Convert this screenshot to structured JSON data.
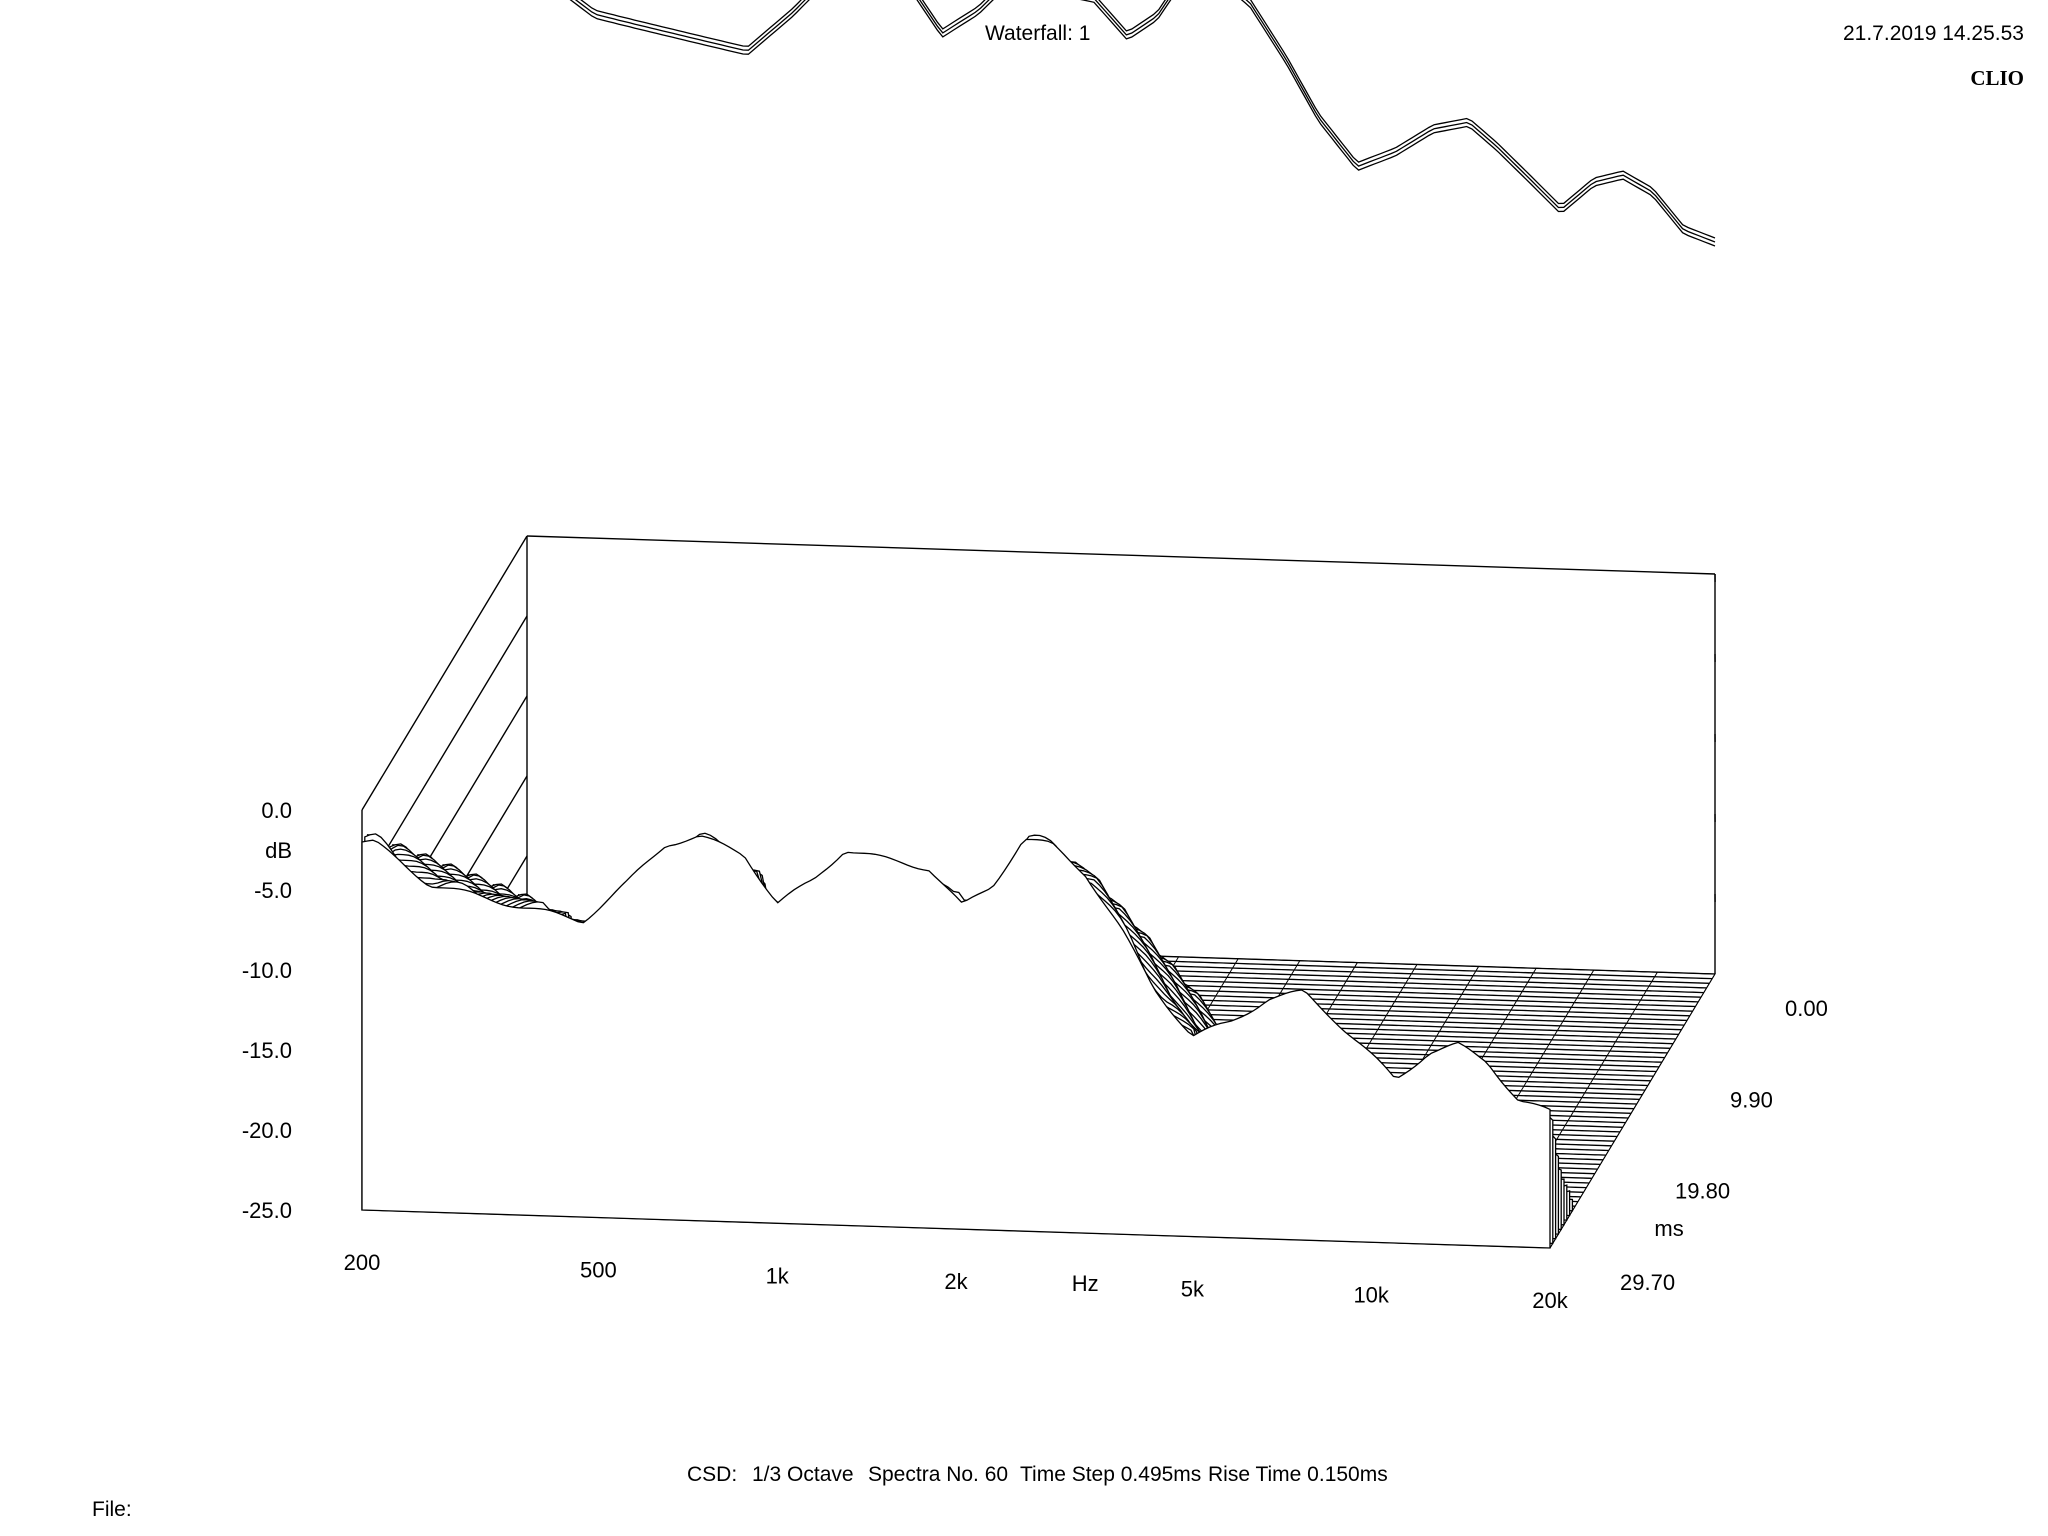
{
  "header": {
    "title": "Waterfall: 1",
    "datetime": "21.7.2019 14.25.53",
    "brand": "CLIO"
  },
  "footer": {
    "csd": "CSD:",
    "octave": "1/3 Octave",
    "spectra": "Spectra No. 60",
    "time_step": "Time Step 0.495ms",
    "rise_time": "Rise Time 0.150ms",
    "file_label": "File:"
  },
  "chart_data": {
    "type": "waterfall",
    "title": "Waterfall: 1",
    "xlabel": "Hz",
    "ylabel": "dB",
    "zlabel": "ms",
    "x_ticks": [
      "200",
      "500",
      "1k",
      "2k",
      "5k",
      "10k",
      "20k"
    ],
    "y_ticks": [
      "0.0",
      "-5.0",
      "-10.0",
      "-15.0",
      "-20.0",
      "-25.0"
    ],
    "z_ticks": [
      "0.00",
      "9.90",
      "19.80",
      "29.70"
    ],
    "xlim": [
      200,
      20000
    ],
    "ylim": [
      -25,
      0
    ],
    "zlim_ms": [
      0,
      29.7
    ],
    "x_scale": "log",
    "spectra_count": 60,
    "first_spectrum_db": [
      {
        "hz": 210,
        "db": -2.0
      },
      {
        "hz": 260,
        "db": -4.5
      },
      {
        "hz": 300,
        "db": -5.0
      },
      {
        "hz": 380,
        "db": -5.8
      },
      {
        "hz": 470,
        "db": -6.5
      },
      {
        "hz": 560,
        "db": -4.0
      },
      {
        "hz": 650,
        "db": -1.5
      },
      {
        "hz": 740,
        "db": -1.0
      },
      {
        "hz": 880,
        "db": -2.0
      },
      {
        "hz": 1000,
        "db": -5.0
      },
      {
        "hz": 1150,
        "db": -3.5
      },
      {
        "hz": 1300,
        "db": -1.5
      },
      {
        "hz": 1500,
        "db": -2.0
      },
      {
        "hz": 1800,
        "db": -2.5
      },
      {
        "hz": 2050,
        "db": -4.8
      },
      {
        "hz": 2300,
        "db": -3.5
      },
      {
        "hz": 2600,
        "db": -0.5
      },
      {
        "hz": 2900,
        "db": -0.8
      },
      {
        "hz": 3300,
        "db": -2.5
      },
      {
        "hz": 3800,
        "db": -6.0
      },
      {
        "hz": 4300,
        "db": -9.5
      },
      {
        "hz": 5000,
        "db": -12.5
      },
      {
        "hz": 5800,
        "db": -11.5
      },
      {
        "hz": 6700,
        "db": -10.0
      },
      {
        "hz": 7700,
        "db": -9.5
      },
      {
        "hz": 8600,
        "db": -11.0
      },
      {
        "hz": 9800,
        "db": -13.0
      },
      {
        "hz": 11000,
        "db": -14.8
      },
      {
        "hz": 12500,
        "db": -13.0
      },
      {
        "hz": 14000,
        "db": -12.5
      },
      {
        "hz": 15700,
        "db": -13.5
      },
      {
        "hz": 17700,
        "db": -15.8
      },
      {
        "hz": 20000,
        "db": -16.5
      }
    ],
    "colors": {
      "line": "#000000",
      "background": "#ffffff"
    }
  }
}
